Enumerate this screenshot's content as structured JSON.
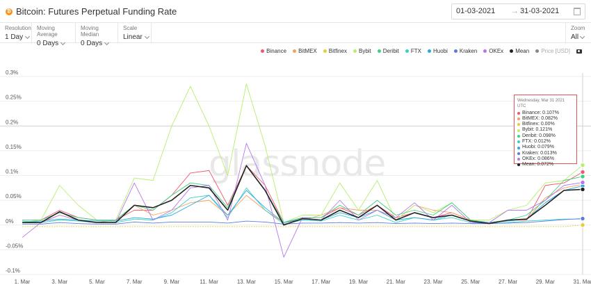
{
  "header": {
    "title": "Bitcoin: Futures Perpetual Funding Rate",
    "start_date": "01-03-2021",
    "arrow": "→",
    "end_date": "31-03-2021"
  },
  "controls": {
    "resolution": {
      "label": "Resolution",
      "value": "1 Day"
    },
    "moving_average": {
      "label": "Moving Average",
      "value": "0 Days"
    },
    "moving_median": {
      "label": "Moving Median",
      "value": "0 Days"
    },
    "scale": {
      "label": "Scale",
      "value": "Linear"
    },
    "zoom": {
      "label": "Zoom",
      "value": "All"
    }
  },
  "legend": [
    {
      "name": "Binance",
      "color": "#f0566f"
    },
    {
      "name": "BitMEX",
      "color": "#f5a05a"
    },
    {
      "name": "Bitfinex",
      "color": "#e3cf3a"
    },
    {
      "name": "Bybit",
      "color": "#b6ef6b"
    },
    {
      "name": "Deribit",
      "color": "#3fcf7f"
    },
    {
      "name": "FTX",
      "color": "#3dcfc5"
    },
    {
      "name": "Huobi",
      "color": "#29a8e0"
    },
    {
      "name": "Kraken",
      "color": "#5b7bdf"
    },
    {
      "name": "OKEx",
      "color": "#b774f0"
    },
    {
      "name": "Mean",
      "color": "#222222"
    },
    {
      "name": "Price [USD]",
      "color": "#888888",
      "muted": true
    }
  ],
  "tooltip": {
    "date": "Wednesday, Mar 31 2021 UTC",
    "rows": [
      {
        "text": "Binance: 0.107%",
        "color": "#f0566f"
      },
      {
        "text": "BitMEX: 0.082%",
        "color": "#f5a05a"
      },
      {
        "text": "Bitfinex: 0.00%",
        "color": "#e3cf3a"
      },
      {
        "text": "Bybit: 0.121%",
        "color": "#b6ef6b"
      },
      {
        "text": "Deribit: 0.098%",
        "color": "#3fcf7f"
      },
      {
        "text": "FTX: 0.012%",
        "color": "#3dcfc5"
      },
      {
        "text": "Huobi: 0.079%",
        "color": "#29a8e0"
      },
      {
        "text": "Kraken: 0.013%",
        "color": "#5b7bdf"
      },
      {
        "text": "OKEx: 0.086%",
        "color": "#b774f0"
      },
      {
        "text": "Mean: 0.072%",
        "color": "#222222"
      }
    ]
  },
  "watermark": "glassnode",
  "chart_data": {
    "type": "line",
    "title": "Bitcoin: Futures Perpetual Funding Rate",
    "xlabel": "",
    "ylabel": "",
    "y_unit": "%",
    "ylim": [
      -0.1,
      0.3
    ],
    "y_ticks": [
      -0.1,
      -0.05,
      0,
      0.05,
      0.1,
      0.15,
      0.2,
      0.25,
      0.3
    ],
    "y_tick_labels": [
      "-0.1%",
      "-0.05%",
      "0%",
      "0.05%",
      "0.1%",
      "0.15%",
      "0.2%",
      "0.25%",
      "0.3%"
    ],
    "x_days": [
      1,
      2,
      3,
      4,
      5,
      6,
      7,
      8,
      9,
      10,
      11,
      12,
      13,
      14,
      15,
      16,
      17,
      18,
      19,
      20,
      21,
      22,
      23,
      24,
      25,
      26,
      27,
      28,
      29,
      30,
      31
    ],
    "x_ticks": [
      1,
      3,
      5,
      7,
      9,
      11,
      13,
      15,
      17,
      19,
      21,
      23,
      25,
      27,
      29,
      31
    ],
    "x_tick_labels": [
      "1. Mar",
      "3. Mar",
      "5. Mar",
      "7. Mar",
      "9. Mar",
      "11. Mar",
      "13. Mar",
      "15. Mar",
      "17. Mar",
      "19. Mar",
      "21. Mar",
      "23. Mar",
      "25. Mar",
      "27. Mar",
      "29. Mar",
      "31. Mar"
    ],
    "grid": "horizontal",
    "series": [
      {
        "name": "Binance",
        "color": "#f0566f",
        "values": [
          0.005,
          0.01,
          0.03,
          0.015,
          0.01,
          0.01,
          0.03,
          0.03,
          0.06,
          0.105,
          0.11,
          0.04,
          0.12,
          0.08,
          0.005,
          0.015,
          0.015,
          0.035,
          0.02,
          0.04,
          0.015,
          0.025,
          0.015,
          0.025,
          0.01,
          0.005,
          0.01,
          0.01,
          0.08,
          0.085,
          0.107
        ]
      },
      {
        "name": "BitMEX",
        "color": "#f5a05a",
        "values": [
          0.005,
          0.005,
          0.02,
          0.01,
          0.005,
          0.01,
          0.04,
          0.02,
          0.03,
          0.045,
          0.05,
          0.02,
          0.06,
          0.03,
          0.005,
          0.01,
          0.02,
          0.035,
          0.03,
          0.03,
          0.01,
          0.04,
          0.03,
          0.025,
          0.01,
          0.005,
          0.01,
          0.01,
          0.055,
          0.075,
          0.082
        ]
      },
      {
        "name": "Bitfinex",
        "color": "#e3cf3a",
        "values": [
          -0.003,
          -0.003,
          -0.003,
          -0.003,
          -0.003,
          -0.003,
          -0.003,
          -0.003,
          -0.003,
          -0.003,
          -0.003,
          -0.003,
          -0.003,
          -0.003,
          -0.003,
          -0.003,
          -0.003,
          -0.003,
          -0.003,
          -0.003,
          -0.003,
          -0.003,
          -0.003,
          -0.003,
          -0.003,
          -0.003,
          -0.003,
          -0.003,
          -0.003,
          -0.003,
          0.0
        ]
      },
      {
        "name": "Bybit",
        "color": "#b6ef6b",
        "values": [
          0.005,
          0.01,
          0.08,
          0.04,
          0.01,
          0.01,
          0.095,
          0.09,
          0.2,
          0.28,
          0.2,
          0.1,
          0.285,
          0.16,
          0.005,
          0.02,
          0.02,
          0.085,
          0.03,
          0.09,
          0.01,
          0.04,
          0.025,
          0.045,
          0.01,
          0.01,
          0.03,
          0.04,
          0.085,
          0.09,
          0.121
        ]
      },
      {
        "name": "Deribit",
        "color": "#3fcf7f",
        "values": [
          0.01,
          0.01,
          0.025,
          0.015,
          0.01,
          0.01,
          0.04,
          0.03,
          0.06,
          0.085,
          0.08,
          0.035,
          0.12,
          0.07,
          0.005,
          0.015,
          0.015,
          0.04,
          0.02,
          0.05,
          0.02,
          0.03,
          0.02,
          0.045,
          0.01,
          0.005,
          0.01,
          0.02,
          0.05,
          0.09,
          0.098
        ]
      },
      {
        "name": "FTX",
        "color": "#3dcfc5",
        "values": [
          0.008,
          0.005,
          0.01,
          0.008,
          0.005,
          0.005,
          0.012,
          0.01,
          0.025,
          0.055,
          0.06,
          0.015,
          0.075,
          0.03,
          0.002,
          0.01,
          0.008,
          0.02,
          0.01,
          0.02,
          0.005,
          0.015,
          0.01,
          0.015,
          0.005,
          0.003,
          0.005,
          0.008,
          0.01,
          0.012,
          0.012
        ]
      },
      {
        "name": "Huobi",
        "color": "#29a8e0",
        "values": [
          0.005,
          0.008,
          0.012,
          0.01,
          0.008,
          0.008,
          0.015,
          0.012,
          0.02,
          0.04,
          0.06,
          0.02,
          0.07,
          0.035,
          0.005,
          0.012,
          0.01,
          0.025,
          0.015,
          0.03,
          0.01,
          0.015,
          0.01,
          0.02,
          0.008,
          0.005,
          0.008,
          0.012,
          0.045,
          0.07,
          0.079
        ]
      },
      {
        "name": "Kraken",
        "color": "#5b7bdf",
        "values": [
          0.002,
          0.002,
          0.005,
          0.003,
          0.002,
          0.002,
          0.006,
          0.004,
          0.006,
          0.006,
          0.006,
          0.004,
          0.008,
          0.006,
          0.002,
          0.004,
          0.004,
          0.005,
          0.004,
          0.005,
          0.003,
          0.004,
          0.003,
          0.004,
          0.003,
          0.003,
          0.004,
          0.005,
          0.008,
          0.011,
          0.013
        ]
      },
      {
        "name": "OKEx",
        "color": "#b774f0",
        "values": [
          -0.025,
          0.005,
          0.02,
          0.01,
          0.005,
          0.005,
          0.085,
          0.01,
          0.03,
          0.075,
          0.08,
          0.01,
          0.165,
          0.08,
          -0.065,
          0.015,
          0.01,
          0.05,
          0.01,
          0.03,
          0.015,
          0.045,
          0.01,
          0.04,
          0.005,
          0.005,
          0.03,
          0.03,
          0.05,
          0.08,
          0.086
        ]
      },
      {
        "name": "Mean",
        "color": "#222222",
        "values": [
          0.005,
          0.005,
          0.027,
          0.01,
          0.005,
          0.005,
          0.04,
          0.035,
          0.05,
          0.08,
          0.075,
          0.03,
          0.12,
          0.07,
          0.0,
          0.013,
          0.01,
          0.03,
          0.015,
          0.04,
          0.01,
          0.025,
          0.015,
          0.02,
          0.008,
          0.003,
          0.01,
          0.012,
          0.04,
          0.07,
          0.072
        ]
      }
    ]
  }
}
